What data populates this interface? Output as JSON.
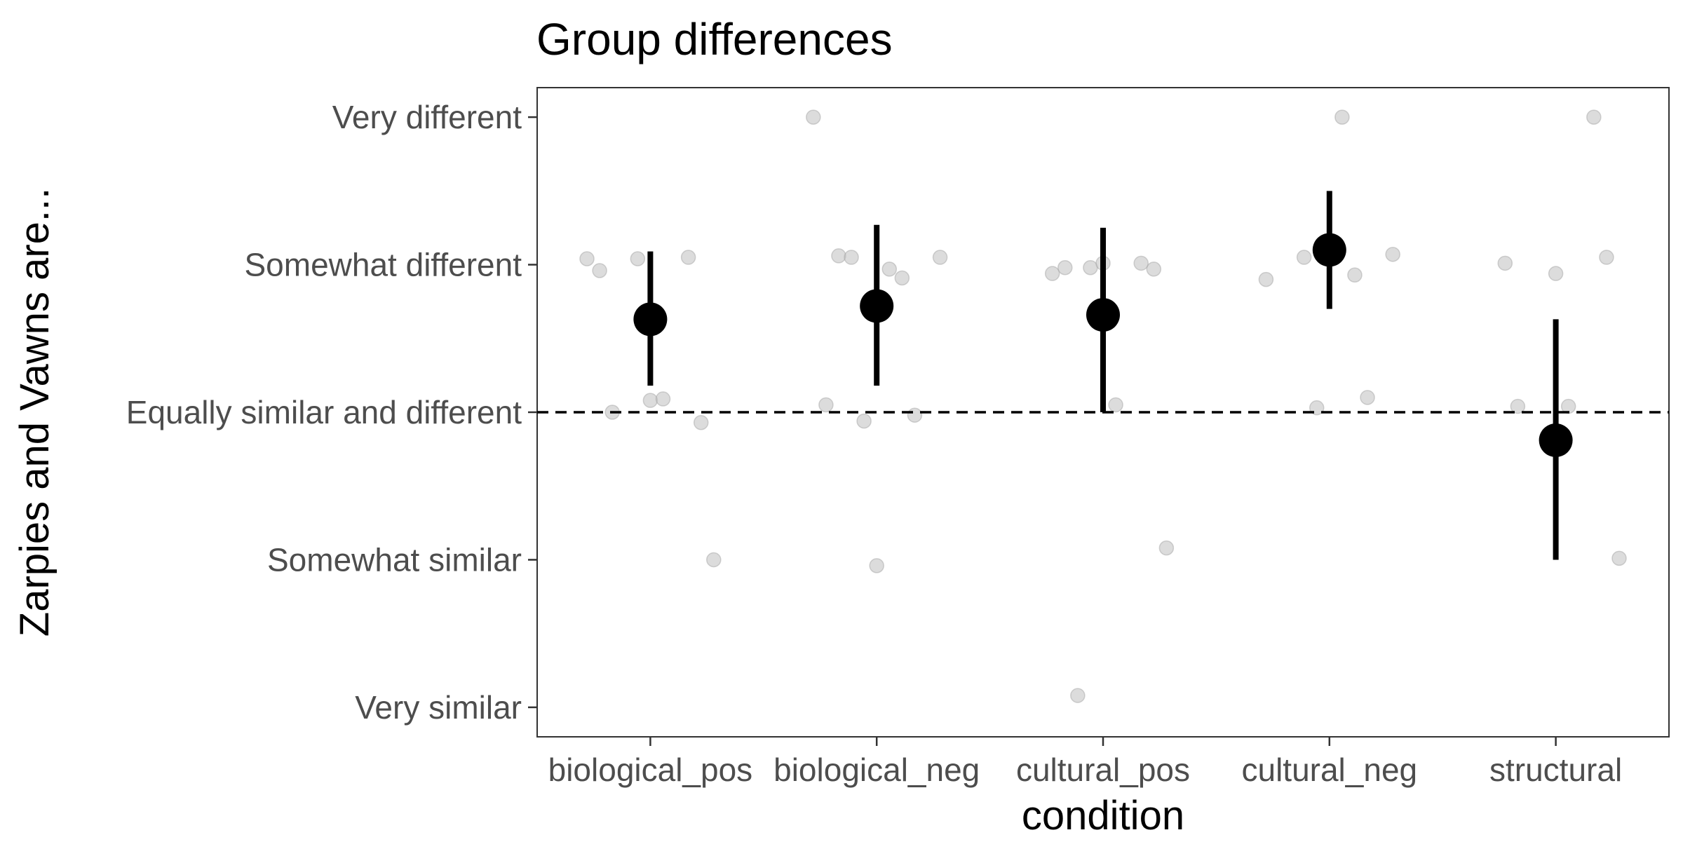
{
  "chart_data": {
    "type": "scatter",
    "title": "Group differences",
    "xlabel": "condition",
    "ylabel": "Zarpies and Vawns are...",
    "categories": [
      "biological_pos",
      "biological_neg",
      "cultural_pos",
      "cultural_neg",
      "structural"
    ],
    "y_tick_labels": [
      "Very similar",
      "Somewhat similar",
      "Equally similar and different",
      "Somewhat different",
      "Very different"
    ],
    "y_tick_values": [
      1,
      2,
      3,
      4,
      5
    ],
    "ylim": [
      0.8,
      5.2
    ],
    "reference_line": {
      "y": 3,
      "style": "dashed"
    },
    "grid": false,
    "legend": "none",
    "colors": {
      "summary": "#000000",
      "raw_points": "#bfbfbf",
      "reference_line": "#000000"
    },
    "summary": [
      {
        "category": "biological_pos",
        "mean": 3.63,
        "ci_low": 3.18,
        "ci_high": 4.09
      },
      {
        "category": "biological_neg",
        "mean": 3.72,
        "ci_low": 3.18,
        "ci_high": 4.27
      },
      {
        "category": "cultural_pos",
        "mean": 3.66,
        "ci_low": 3.0,
        "ci_high": 4.25
      },
      {
        "category": "cultural_neg",
        "mean": 4.1,
        "ci_low": 3.7,
        "ci_high": 4.5
      },
      {
        "category": "structural",
        "mean": 2.81,
        "ci_low": 2.0,
        "ci_high": 3.63
      }
    ],
    "raw_points": [
      {
        "category": "biological_pos",
        "y": [
          4.04,
          4.04,
          4.05,
          3.96,
          3.08,
          2.93,
          3.0,
          3.09,
          2.0
        ]
      },
      {
        "category": "biological_neg",
        "y": [
          4.06,
          3.97,
          4.05,
          4.05,
          3.91,
          5.0,
          2.94,
          2.98,
          3.05,
          1.96
        ]
      },
      {
        "category": "cultural_pos",
        "y": [
          3.98,
          4.01,
          3.94,
          4.01,
          3.97,
          3.98,
          3.05,
          2.08,
          1.08
        ]
      },
      {
        "category": "cultural_neg",
        "y": [
          5.0,
          4.07,
          4.05,
          3.93,
          3.9,
          3.03,
          3.1
        ]
      },
      {
        "category": "structural",
        "y": [
          5.0,
          4.01,
          3.94,
          4.05,
          3.04,
          3.04,
          2.01
        ]
      }
    ]
  }
}
